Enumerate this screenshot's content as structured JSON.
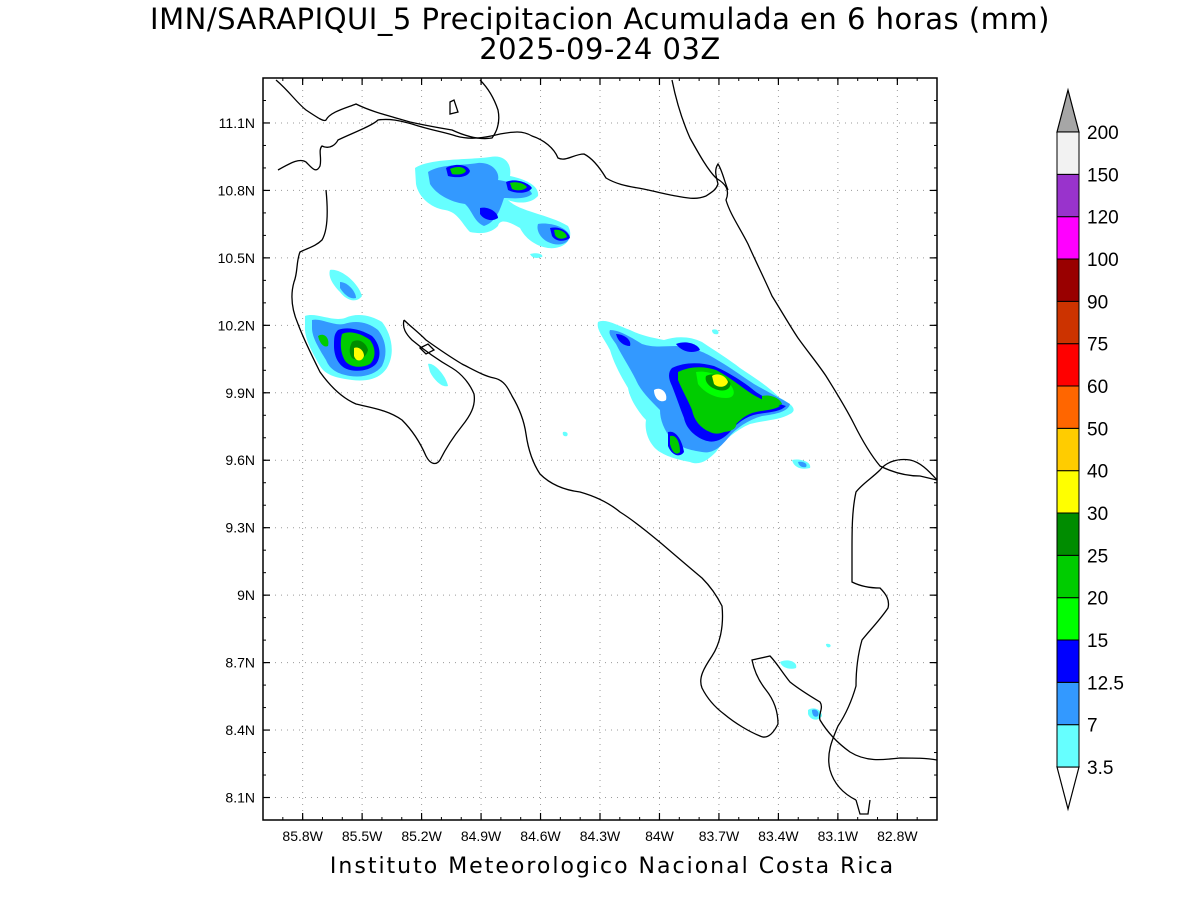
{
  "title": {
    "line1": "IMN/SARAPIQUI_5 Precipitacion Acumulada en 6 horas (mm)",
    "line2": "2025-09-24 03Z"
  },
  "footer": "Instituto Meteorologico Nacional Costa Rica",
  "map": {
    "lon_range": [
      -86.0,
      -82.6
    ],
    "lat_range": [
      8.0,
      11.3
    ],
    "lon_ticks": [
      {
        "value": -85.8,
        "label": "85.8W"
      },
      {
        "value": -85.5,
        "label": "85.5W"
      },
      {
        "value": -85.2,
        "label": "85.2W"
      },
      {
        "value": -84.9,
        "label": "84.9W"
      },
      {
        "value": -84.6,
        "label": "84.6W"
      },
      {
        "value": -84.3,
        "label": "84.3W"
      },
      {
        "value": -84.0,
        "label": "84W"
      },
      {
        "value": -83.7,
        "label": "83.7W"
      },
      {
        "value": -83.4,
        "label": "83.4W"
      },
      {
        "value": -83.1,
        "label": "83.1W"
      },
      {
        "value": -82.8,
        "label": "82.8W"
      }
    ],
    "lat_ticks": [
      {
        "value": 11.1,
        "label": "11.1N"
      },
      {
        "value": 10.8,
        "label": "10.8N"
      },
      {
        "value": 10.5,
        "label": "10.5N"
      },
      {
        "value": 10.2,
        "label": "10.2N"
      },
      {
        "value": 9.9,
        "label": "9.9N"
      },
      {
        "value": 9.6,
        "label": "9.6N"
      },
      {
        "value": 9.3,
        "label": "9.3N"
      },
      {
        "value": 9.0,
        "label": "9N"
      },
      {
        "value": 8.7,
        "label": "8.7N"
      },
      {
        "value": 8.4,
        "label": "8.4N"
      },
      {
        "value": 8.1,
        "label": "8.1N"
      }
    ],
    "gridlines": true
  },
  "colorbar": {
    "levels": [
      "3.5",
      "7",
      "12.5",
      "15",
      "20",
      "25",
      "30",
      "40",
      "50",
      "60",
      "75",
      "90",
      "100",
      "120",
      "150",
      "200"
    ],
    "colors": [
      "#66ffff",
      "#3399ff",
      "#0000ff",
      "#00ff00",
      "#00cc00",
      "#008c00",
      "#ffff00",
      "#ffcc00",
      "#ff6600",
      "#ff0000",
      "#cc3300",
      "#990000",
      "#ff00ff",
      "#9933cc",
      "#f2f2f2"
    ],
    "below_color": "#ffffff",
    "above_color": "#a6a6a6"
  },
  "rain_cells": [
    {
      "lon": -84.88,
      "lat": 10.82,
      "level": 2
    },
    {
      "lon": -84.97,
      "lat": 10.89,
      "level": 4
    },
    {
      "lon": -84.72,
      "lat": 10.83,
      "level": 4
    },
    {
      "lon": -84.83,
      "lat": 10.69,
      "level": 2
    },
    {
      "lon": -84.48,
      "lat": 10.61,
      "level": 4
    },
    {
      "lon": -85.55,
      "lat": 10.36,
      "level": 1
    },
    {
      "lon": -85.52,
      "lat": 10.1,
      "level": 6
    },
    {
      "lon": -85.76,
      "lat": 10.14,
      "level": 3
    },
    {
      "lon": -85.28,
      "lat": 9.95,
      "level": 0
    },
    {
      "lon": -83.65,
      "lat": 9.93,
      "level": 6
    },
    {
      "lon": -83.8,
      "lat": 9.8,
      "level": 3
    },
    {
      "lon": -83.95,
      "lat": 9.7,
      "level": 3
    },
    {
      "lon": -84.1,
      "lat": 10.14,
      "level": 2
    },
    {
      "lon": -83.35,
      "lat": 9.86,
      "level": 4
    },
    {
      "lon": -83.14,
      "lat": 9.57,
      "level": 1
    },
    {
      "lon": -83.12,
      "lat": 8.47,
      "level": 1
    },
    {
      "lon": -83.19,
      "lat": 8.7,
      "level": 0
    }
  ]
}
